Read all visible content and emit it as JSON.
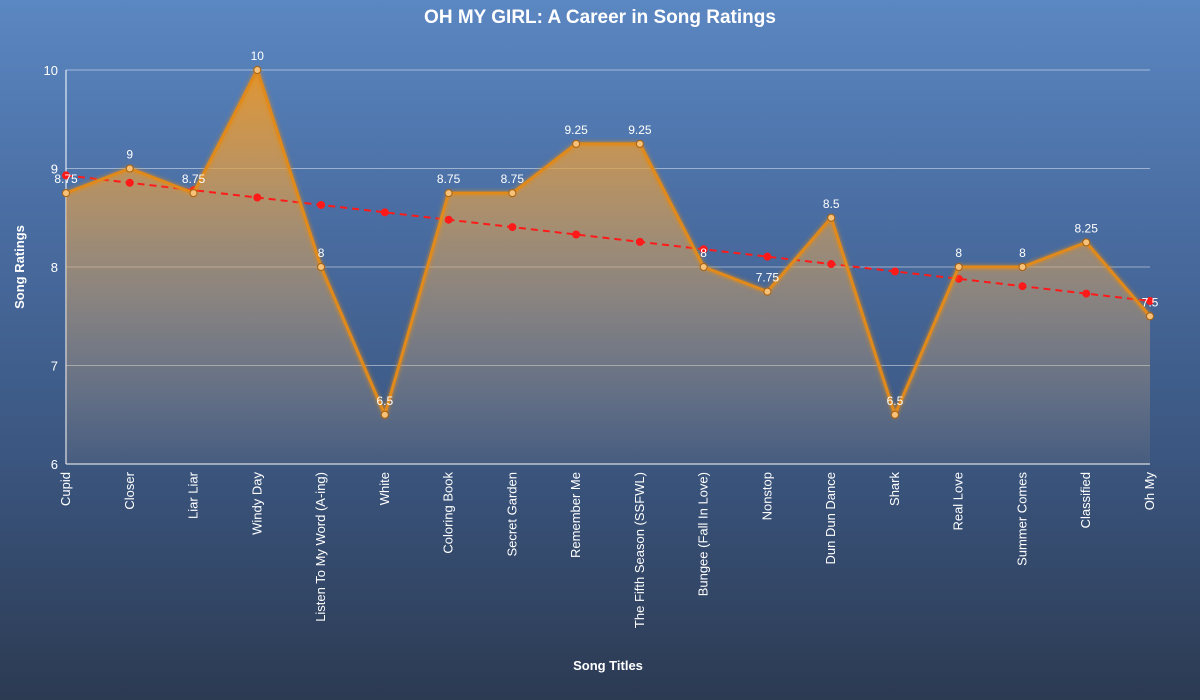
{
  "chart_data": {
    "type": "line",
    "title": "OH MY GIRL: A Career in Song Ratings",
    "xlabel": "Song Titles",
    "ylabel": "Song Ratings",
    "ylim": [
      6,
      10
    ],
    "yticks": [
      6,
      7,
      8,
      9,
      10
    ],
    "grid": true,
    "categories": [
      "Cupid",
      "Closer",
      "Liar Liar",
      "Windy Day",
      "Listen To My Word (A-ing)",
      "White",
      "Coloring Book",
      "Secret Garden",
      "Remember Me",
      "The Fifth Season (SSFWL)",
      "Bungee (Fall In Love)",
      "Nonstop",
      "Dun Dun Dance",
      "Shark",
      "Real Love",
      "Summer Comes",
      "Classified",
      "Oh My"
    ],
    "series": [
      {
        "values": [
          8.75,
          9,
          8.75,
          10,
          8,
          6.5,
          8.75,
          8.75,
          9.25,
          9.25,
          8,
          7.75,
          8.5,
          6.5,
          8,
          8,
          8.25,
          7.5
        ],
        "labels": [
          "8.75",
          "9",
          "8.75",
          "10",
          "8",
          "6.5",
          "8.75",
          "8.75",
          "9.25",
          "9.25",
          "8",
          "7.75",
          "8.5",
          "6.5",
          "8",
          "8",
          "8.25",
          "7.5"
        ],
        "color": "#e08a1e",
        "fill": "area"
      },
      {
        "trend": true,
        "values": [
          8.93,
          8.855,
          8.78,
          8.705,
          8.63,
          8.555,
          8.48,
          8.405,
          8.33,
          8.255,
          8.18,
          8.105,
          8.03,
          7.955,
          7.88,
          7.805,
          7.73,
          7.655
        ],
        "color": "#ff1a1a",
        "style": "dashed"
      }
    ]
  }
}
